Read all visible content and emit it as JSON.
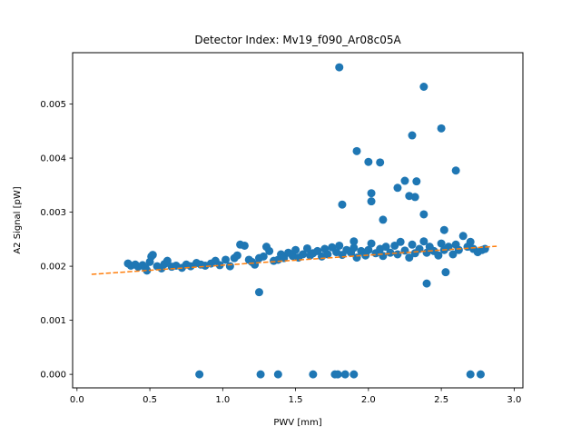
{
  "chart_data": {
    "type": "scatter",
    "title": "Detector Index: Mv19_f090_Ar08c05A",
    "xlabel": "PWV [mm]",
    "ylabel": "A2 Signal [pW]",
    "xlim": [
      -0.03,
      3.06
    ],
    "ylim": [
      -0.00025,
      0.00595
    ],
    "xticks": [
      0.0,
      0.5,
      1.0,
      1.5,
      2.0,
      2.5,
      3.0
    ],
    "xtick_labels": [
      "0.0",
      "0.5",
      "1.0",
      "1.5",
      "2.0",
      "2.5",
      "3.0"
    ],
    "yticks": [
      0.0,
      0.001,
      0.002,
      0.003,
      0.004,
      0.005
    ],
    "ytick_labels": [
      "0.000",
      "0.001",
      "0.002",
      "0.003",
      "0.004",
      "0.005"
    ],
    "grid": false,
    "colors": {
      "points": "#1f77b4",
      "fit": "#ff7f0e"
    },
    "series": [
      {
        "name": "data",
        "kind": "scatter",
        "points": [
          [
            0.35,
            0.00205
          ],
          [
            0.37,
            0.00201
          ],
          [
            0.4,
            0.00203
          ],
          [
            0.42,
            0.00199
          ],
          [
            0.45,
            0.00202
          ],
          [
            0.47,
            0.00197
          ],
          [
            0.48,
            0.00192
          ],
          [
            0.5,
            0.00208
          ],
          [
            0.51,
            0.00218
          ],
          [
            0.52,
            0.00221
          ],
          [
            0.55,
            0.002
          ],
          [
            0.58,
            0.00196
          ],
          [
            0.6,
            0.00204
          ],
          [
            0.62,
            0.0021
          ],
          [
            0.65,
            0.00199
          ],
          [
            0.68,
            0.00201
          ],
          [
            0.72,
            0.00197
          ],
          [
            0.75,
            0.00203
          ],
          [
            0.78,
            0.002
          ],
          [
            0.82,
            0.00206
          ],
          [
            0.85,
            0.00203
          ],
          [
            0.88,
            0.00201
          ],
          [
            0.92,
            0.00205
          ],
          [
            0.95,
            0.0021
          ],
          [
            0.98,
            0.00202
          ],
          [
            1.02,
            0.00212
          ],
          [
            1.05,
            0.002
          ],
          [
            1.08,
            0.00215
          ],
          [
            1.1,
            0.0022
          ],
          [
            1.12,
            0.0024
          ],
          [
            1.15,
            0.00238
          ],
          [
            1.18,
            0.00212
          ],
          [
            1.2,
            0.00208
          ],
          [
            1.22,
            0.00203
          ],
          [
            1.25,
            0.00215
          ],
          [
            1.28,
            0.00218
          ],
          [
            1.3,
            0.00236
          ],
          [
            1.32,
            0.00228
          ],
          [
            1.35,
            0.0021
          ],
          [
            1.38,
            0.00212
          ],
          [
            1.4,
            0.00222
          ],
          [
            1.42,
            0.00215
          ],
          [
            1.45,
            0.00225
          ],
          [
            1.48,
            0.00219
          ],
          [
            1.5,
            0.0023
          ],
          [
            1.52,
            0.00216
          ],
          [
            1.55,
            0.00222
          ],
          [
            1.58,
            0.00233
          ],
          [
            1.6,
            0.0022
          ],
          [
            1.62,
            0.00224
          ],
          [
            1.65,
            0.00228
          ],
          [
            1.68,
            0.00218
          ],
          [
            1.7,
            0.00232
          ],
          [
            1.72,
            0.00222
          ],
          [
            1.75,
            0.00235
          ],
          [
            1.78,
            0.00226
          ],
          [
            1.8,
            0.00238
          ],
          [
            1.82,
            0.00221
          ],
          [
            1.85,
            0.0023
          ],
          [
            1.88,
            0.00225
          ],
          [
            1.9,
            0.00234
          ],
          [
            1.92,
            0.00216
          ],
          [
            1.95,
            0.00228
          ],
          [
            1.98,
            0.0022
          ],
          [
            2.0,
            0.0023
          ],
          [
            2.02,
            0.00242
          ],
          [
            2.05,
            0.00224
          ],
          [
            2.08,
            0.00232
          ],
          [
            2.1,
            0.00219
          ],
          [
            2.12,
            0.00236
          ],
          [
            2.15,
            0.00225
          ],
          [
            2.18,
            0.00238
          ],
          [
            2.2,
            0.00222
          ],
          [
            2.22,
            0.00245
          ],
          [
            2.25,
            0.00229
          ],
          [
            2.28,
            0.00216
          ],
          [
            2.3,
            0.0024
          ],
          [
            2.32,
            0.00224
          ],
          [
            2.35,
            0.00232
          ],
          [
            2.38,
            0.00246
          ],
          [
            2.4,
            0.00225
          ],
          [
            2.42,
            0.00236
          ],
          [
            2.45,
            0.00228
          ],
          [
            2.48,
            0.0022
          ],
          [
            2.5,
            0.00242
          ],
          [
            2.52,
            0.0023
          ],
          [
            2.55,
            0.00236
          ],
          [
            2.58,
            0.00222
          ],
          [
            2.6,
            0.0024
          ],
          [
            2.62,
            0.0023
          ],
          [
            2.65,
            0.00256
          ],
          [
            2.68,
            0.00236
          ],
          [
            2.7,
            0.00245
          ],
          [
            2.72,
            0.00232
          ],
          [
            2.75,
            0.00226
          ],
          [
            2.78,
            0.0023
          ],
          [
            2.8,
            0.00232
          ],
          [
            0.84,
            0.0
          ],
          [
            1.26,
            0.0
          ],
          [
            1.38,
            0.0
          ],
          [
            1.62,
            0.0
          ],
          [
            1.77,
            0.0
          ],
          [
            1.79,
            0.0
          ],
          [
            1.84,
            0.0
          ],
          [
            1.9,
            0.0
          ],
          [
            2.7,
            0.0
          ],
          [
            2.77,
            0.0
          ],
          [
            1.8,
            0.00568
          ],
          [
            2.38,
            0.00532
          ],
          [
            2.5,
            0.00455
          ],
          [
            2.3,
            0.00442
          ],
          [
            1.92,
            0.00413
          ],
          [
            2.0,
            0.00393
          ],
          [
            2.08,
            0.00392
          ],
          [
            2.6,
            0.00377
          ],
          [
            2.25,
            0.00358
          ],
          [
            2.33,
            0.00357
          ],
          [
            2.2,
            0.00345
          ],
          [
            2.32,
            0.00328
          ],
          [
            2.02,
            0.00335
          ],
          [
            2.02,
            0.0032
          ],
          [
            2.28,
            0.0033
          ],
          [
            1.82,
            0.00314
          ],
          [
            2.1,
            0.00286
          ],
          [
            2.38,
            0.00296
          ],
          [
            1.9,
            0.00246
          ],
          [
            2.52,
            0.00267
          ],
          [
            1.25,
            0.00152
          ],
          [
            2.4,
            0.00168
          ],
          [
            2.53,
            0.00189
          ]
        ]
      },
      {
        "name": "linear fit",
        "kind": "line",
        "style": "dashed",
        "x": [
          0.1,
          2.88
        ],
        "y": [
          0.00185,
          0.00237
        ]
      }
    ]
  }
}
